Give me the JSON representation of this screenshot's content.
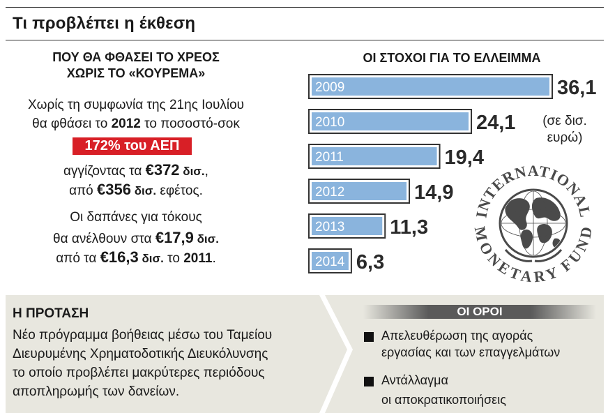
{
  "header": {
    "title": "Τι προβλέπει η έκθεση"
  },
  "debt": {
    "heading_line1": "ΠΟΥ ΘΑ ΦΘΑΣΕΙ ΤΟ ΧΡΕΟΣ",
    "heading_line2": "ΧΩΡΙΣ ΤΟ «ΚΟΥΡΕΜΑ»",
    "line1": "Χωρίς τη συμφωνία της 21ης Ιουλίου",
    "line2_pre": "θα φθάσει το ",
    "line2_year": "2012",
    "line2_post": " το ποσοστό-σοκ",
    "highlight": "172% του ΑΕΠ",
    "line3_pre": "αγγίζοντας τα ",
    "line3_value": "€372",
    "line3_unit": " δισ.",
    "line3_post": ",",
    "line4_pre": "από ",
    "line4_value": "€356",
    "line4_unit": " δισ.",
    "line4_post": " εφέτος.",
    "line5": "Οι δαπάνες για τόκους",
    "line6_pre": "θα ανέλθουν στα ",
    "line6_value": "€17,9",
    "line6_unit": " δισ.",
    "line7_pre": "από τα ",
    "line7_value": "€16,3",
    "line7_unit": " δισ.",
    "line7_mid": " το ",
    "line7_year": "2011",
    "line7_post": "."
  },
  "chart_data": {
    "type": "bar",
    "orientation": "horizontal",
    "title": "ΟΙ ΣΤΟΧΟΙ ΓΙΑ ΤΟ ΕΛΛΕΙΜΜΑ",
    "categories": [
      "2009",
      "2010",
      "2011",
      "2012",
      "2013",
      "2014"
    ],
    "values": [
      36.1,
      24.1,
      19.4,
      14.9,
      11.3,
      6.3
    ],
    "value_labels": [
      "36,1",
      "24,1",
      "19,4",
      "14,9",
      "11,3",
      "6,3"
    ],
    "unit_note_line1": "(σε δισ.",
    "unit_note_line2": "ευρώ)",
    "bar_color": "#8ab4dd",
    "bar_border_color": "#333333",
    "xlim": [
      0,
      36.1
    ],
    "grid": false,
    "legend": "none"
  },
  "logo": {
    "top_text": "INTERNATIONAL",
    "bottom_text": "MONETARY FUND",
    "color": "#4a4a4a"
  },
  "proposal": {
    "title": "Η ΠΡΟΤΑΣΗ",
    "line1": "Νέο πρόγραμμα βοήθειας μέσω του Ταμείου",
    "line2": "Διευρυμένης Χρηματοδοτικής Διευκόλυνσης",
    "line3": "το οποίο προβλέπει μακρύτερες περιόδους",
    "line4": "αποπληρωμής των δανείων."
  },
  "terms": {
    "title": "ΟΙ ΟΡΟΙ",
    "item1_line1": "Απελευθέρωση της αγοράς",
    "item1_line2": "εργασίας και των επαγγελμάτων",
    "item2_line1": "Αντάλλαγμα",
    "item2_line2": "οι αποκρατικοποιήσεις"
  },
  "colors": {
    "highlight_red": "#d81f26",
    "panel_bg": "#e8e7df",
    "terms_header_bg": "#5a5a5a"
  }
}
